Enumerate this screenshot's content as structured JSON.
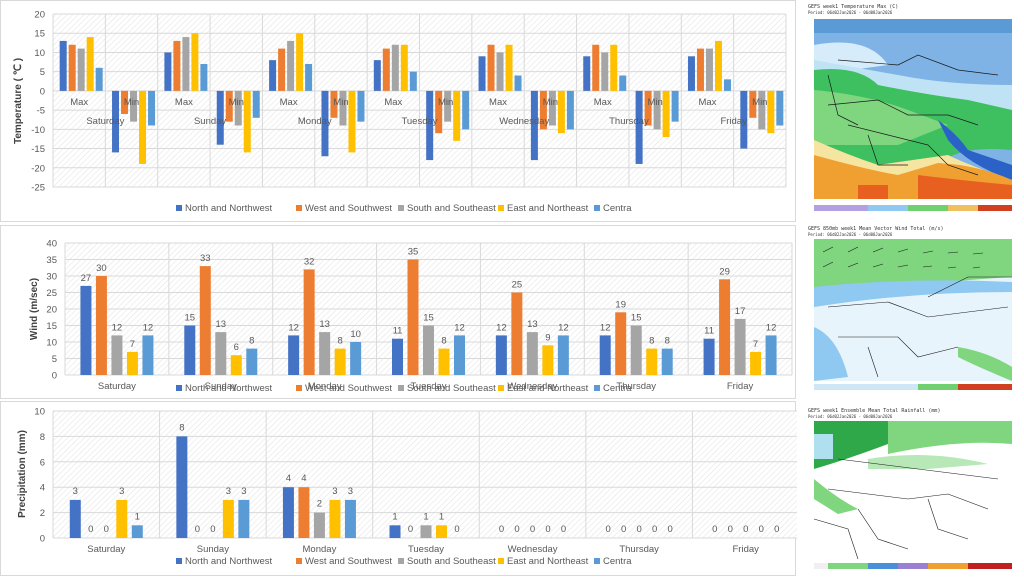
{
  "series_colors": {
    "North and Northwest": "#4472c4",
    "West and Southwest": "#ed7d31",
    "South and Southeast": "#a5a5a5",
    "East and Northeast": "#ffc000",
    "Centra": "#5b9bd5"
  },
  "chart_data": [
    {
      "type": "bar",
      "id": "temperature",
      "title": "",
      "ylabel": "Temperature ( ℃ )",
      "xlabel": "",
      "ylim": [
        -25,
        20
      ],
      "yticks": [
        20,
        15,
        10,
        5,
        0,
        -5,
        -10,
        -15,
        -20,
        -25
      ],
      "grid": true,
      "legend": "bottom",
      "days": [
        "Saturday",
        "Sunday",
        "Monday",
        "Tuesday",
        "Wednesday",
        "Thursday",
        "Friday"
      ],
      "subcategories": [
        "Max",
        "Min"
      ],
      "series": [
        {
          "name": "North and Northwest",
          "max": [
            13,
            10,
            8,
            8,
            9,
            9,
            9
          ],
          "min": [
            -16,
            -14,
            -17,
            -18,
            -18,
            -19,
            -15
          ]
        },
        {
          "name": "West and Southwest",
          "max": [
            12,
            13,
            11,
            11,
            12,
            12,
            11
          ],
          "min": [
            -6,
            -8,
            -7,
            -11,
            -10,
            -9,
            -7
          ]
        },
        {
          "name": "South and Southeast",
          "max": [
            11,
            14,
            13,
            12,
            10,
            10,
            11
          ],
          "min": [
            -8,
            -9,
            -9,
            -8,
            -9,
            -10,
            -10
          ]
        },
        {
          "name": "East and Northeast",
          "max": [
            14,
            15,
            15,
            12,
            12,
            12,
            13
          ],
          "min": [
            -19,
            -16,
            -16,
            -13,
            -11,
            -12,
            -11
          ]
        },
        {
          "name": "Centra",
          "max": [
            6,
            7,
            7,
            5,
            4,
            4,
            3
          ],
          "min": [
            -9,
            -7,
            -8,
            -10,
            -10,
            -8,
            -9
          ]
        }
      ]
    },
    {
      "type": "bar",
      "id": "wind",
      "title": "",
      "ylabel": "Wind (m/sec)",
      "xlabel": "",
      "ylim": [
        0,
        40
      ],
      "yticks": [
        40,
        35,
        30,
        25,
        20,
        15,
        10,
        5,
        0
      ],
      "grid": true,
      "legend": "bottom",
      "categories": [
        "Saturday",
        "Sunday",
        "Monday",
        "Tuesday",
        "Wednesday",
        "Thursday",
        "Friday"
      ],
      "series": [
        {
          "name": "North and Northwest",
          "values": [
            27,
            15,
            12,
            11,
            12,
            12,
            11
          ]
        },
        {
          "name": "West and Southwest",
          "values": [
            30,
            33,
            32,
            35,
            25,
            19,
            29
          ]
        },
        {
          "name": "South and Southeast",
          "values": [
            12,
            13,
            13,
            15,
            13,
            15,
            17
          ]
        },
        {
          "name": "East and Northeast",
          "values": [
            7,
            6,
            8,
            8,
            9,
            8,
            7
          ]
        },
        {
          "name": "Centra",
          "values": [
            12,
            8,
            10,
            12,
            12,
            8,
            12
          ]
        }
      ]
    },
    {
      "type": "bar",
      "id": "precipitation",
      "title": "",
      "ylabel": "Precipitation  (mm)",
      "xlabel": "",
      "ylim": [
        0,
        10
      ],
      "yticks": [
        10,
        8,
        6,
        4,
        2,
        0
      ],
      "grid": true,
      "legend": "bottom",
      "categories": [
        "Saturday",
        "Sunday",
        "Monday",
        "Tuesday",
        "Wednesday",
        "Thursday",
        "Friday"
      ],
      "series": [
        {
          "name": "North and Northwest",
          "values": [
            3,
            8,
            4,
            1,
            0,
            0,
            0
          ]
        },
        {
          "name": "West and Southwest",
          "values": [
            0,
            0,
            4,
            0,
            0,
            0,
            0
          ]
        },
        {
          "name": "South and Southeast",
          "values": [
            0,
            0,
            2,
            1,
            0,
            0,
            0
          ]
        },
        {
          "name": "East and Northeast",
          "values": [
            3,
            3,
            3,
            1,
            0,
            0,
            0
          ]
        },
        {
          "name": "Centra",
          "values": [
            1,
            3,
            3,
            0,
            0,
            0,
            0
          ]
        }
      ]
    }
  ],
  "maps": [
    {
      "title": "GEFS week1 Temperature Max (C)",
      "period": "Period: 06d02Jan2026 - 06d08Jan2026"
    },
    {
      "title": "GEFS 850mb week1 Mean Vector Wind Total (m/s)",
      "period": "Period: 06d02Jan2026 - 06d08Jan2026"
    },
    {
      "title": "GEFS week1 Ensemble Mean Total Rainfall (mm)",
      "period": "Period: 06d02Jan2026 - 06d08Jan2026"
    }
  ]
}
